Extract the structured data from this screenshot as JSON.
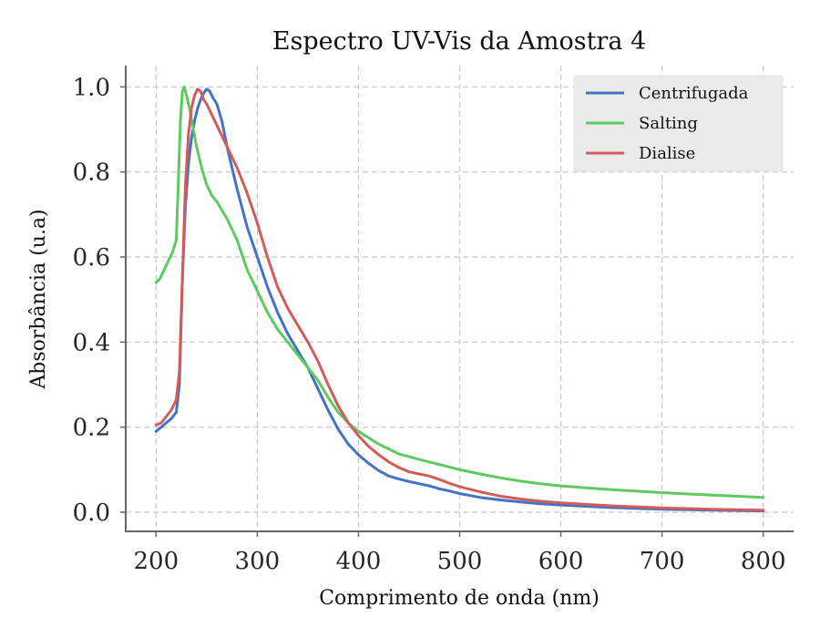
{
  "chart_data": {
    "type": "line",
    "title": "Espectro UV-Vis da Amostra 4",
    "xlabel": "Comprimento de onda (nm)",
    "ylabel": "Absorbância (u.a)",
    "xlim": [
      170,
      830
    ],
    "ylim": [
      -0.045,
      1.05
    ],
    "xticks": [
      200,
      300,
      400,
      500,
      600,
      700,
      800
    ],
    "yticks": [
      0.0,
      0.2,
      0.4,
      0.6,
      0.8,
      1.0
    ],
    "xtick_labels": [
      "200",
      "300",
      "400",
      "500",
      "600",
      "700",
      "800"
    ],
    "ytick_labels": [
      "0.0",
      "0.2",
      "0.4",
      "0.6",
      "0.8",
      "1.0"
    ],
    "grid": true,
    "legend_position": "top-right",
    "series": [
      {
        "name": "Centrifugada",
        "color": "#4472c4",
        "x": [
          200,
          205,
          210,
          215,
          220,
          223,
          226,
          229,
          232,
          235,
          238,
          241,
          244,
          247,
          250,
          253,
          256,
          260,
          265,
          270,
          280,
          290,
          300,
          310,
          320,
          330,
          340,
          350,
          360,
          370,
          380,
          390,
          400,
          410,
          420,
          430,
          440,
          450,
          460,
          470,
          480,
          490,
          500,
          520,
          540,
          560,
          580,
          600,
          650,
          700,
          750,
          800
        ],
        "y": [
          0.19,
          0.2,
          0.21,
          0.22,
          0.235,
          0.3,
          0.55,
          0.72,
          0.82,
          0.88,
          0.92,
          0.95,
          0.97,
          0.985,
          0.995,
          0.99,
          0.975,
          0.96,
          0.92,
          0.86,
          0.76,
          0.67,
          0.6,
          0.53,
          0.47,
          0.42,
          0.38,
          0.34,
          0.29,
          0.24,
          0.195,
          0.16,
          0.135,
          0.115,
          0.098,
          0.085,
          0.078,
          0.072,
          0.067,
          0.062,
          0.055,
          0.05,
          0.044,
          0.035,
          0.029,
          0.024,
          0.02,
          0.017,
          0.011,
          0.007,
          0.005,
          0.003
        ]
      },
      {
        "name": "Salting",
        "color": "#5fca5f",
        "x": [
          200,
          204,
          208,
          212,
          216,
          220,
          222,
          224,
          226,
          228,
          230,
          233,
          236,
          240,
          245,
          250,
          255,
          260,
          270,
          280,
          290,
          300,
          310,
          320,
          330,
          340,
          350,
          360,
          370,
          380,
          390,
          400,
          420,
          440,
          460,
          480,
          500,
          520,
          540,
          560,
          580,
          600,
          650,
          700,
          750,
          800
        ],
        "y": [
          0.54,
          0.55,
          0.57,
          0.59,
          0.61,
          0.64,
          0.78,
          0.92,
          0.99,
          1.0,
          0.98,
          0.95,
          0.91,
          0.86,
          0.81,
          0.77,
          0.745,
          0.73,
          0.69,
          0.64,
          0.57,
          0.52,
          0.47,
          0.43,
          0.4,
          0.37,
          0.34,
          0.31,
          0.27,
          0.235,
          0.21,
          0.19,
          0.16,
          0.137,
          0.124,
          0.112,
          0.1,
          0.09,
          0.081,
          0.073,
          0.067,
          0.062,
          0.053,
          0.046,
          0.04,
          0.035
        ]
      },
      {
        "name": "Dialise",
        "color": "#d25c5c",
        "x": [
          200,
          205,
          210,
          215,
          220,
          223,
          226,
          229,
          232,
          235,
          238,
          241,
          244,
          247,
          250,
          255,
          260,
          265,
          270,
          280,
          290,
          300,
          310,
          320,
          330,
          340,
          350,
          360,
          370,
          380,
          390,
          400,
          410,
          420,
          430,
          440,
          450,
          460,
          470,
          480,
          490,
          500,
          520,
          540,
          560,
          580,
          600,
          650,
          700,
          750,
          800
        ],
        "y": [
          0.205,
          0.21,
          0.225,
          0.24,
          0.265,
          0.33,
          0.55,
          0.77,
          0.89,
          0.95,
          0.98,
          0.995,
          0.99,
          0.97,
          0.96,
          0.935,
          0.91,
          0.885,
          0.86,
          0.81,
          0.75,
          0.68,
          0.6,
          0.53,
          0.48,
          0.44,
          0.4,
          0.355,
          0.3,
          0.25,
          0.21,
          0.18,
          0.155,
          0.135,
          0.118,
          0.105,
          0.095,
          0.09,
          0.085,
          0.077,
          0.068,
          0.06,
          0.048,
          0.038,
          0.031,
          0.026,
          0.022,
          0.015,
          0.01,
          0.007,
          0.005
        ]
      }
    ]
  }
}
